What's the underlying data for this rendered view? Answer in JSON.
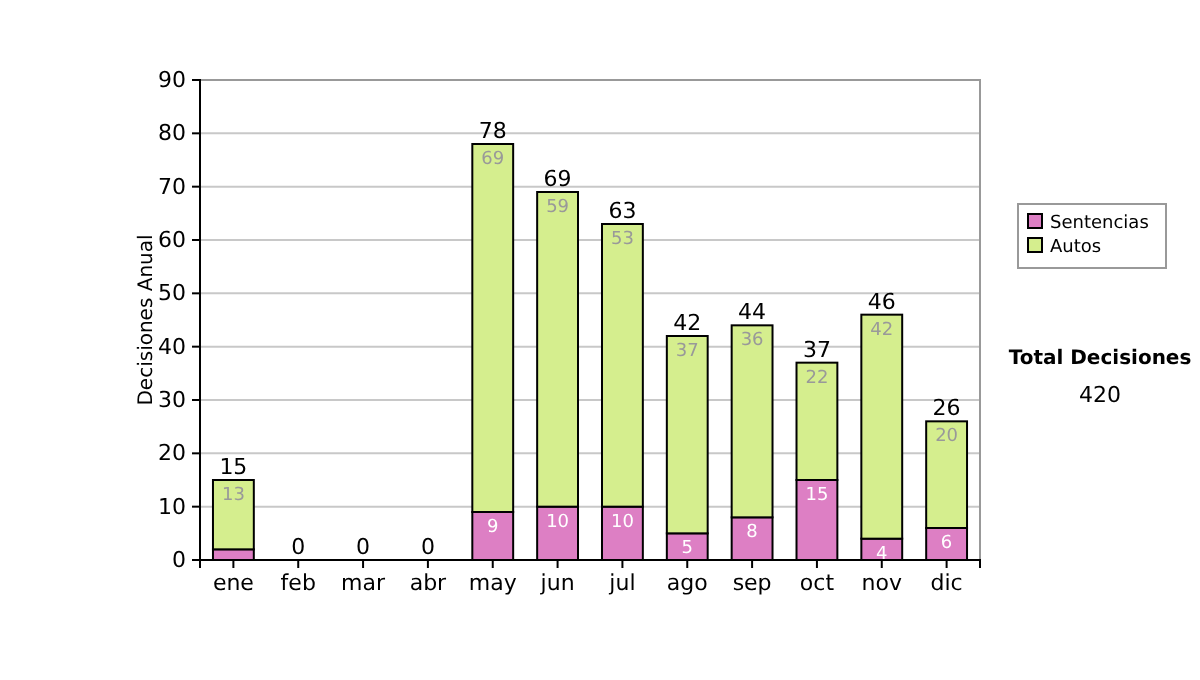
{
  "chart_data": {
    "type": "bar",
    "stacked": true,
    "ylabel": "Decisiones Anual",
    "categories": [
      "ene",
      "feb",
      "mar",
      "abr",
      "may",
      "jun",
      "jul",
      "ago",
      "sep",
      "oct",
      "nov",
      "dic"
    ],
    "series": [
      {
        "name": "Sentencias",
        "color": "#dd7fc4",
        "values": [
          2,
          0,
          0,
          0,
          9,
          10,
          10,
          5,
          8,
          15,
          4,
          6
        ],
        "value_labels": [
          null,
          null,
          null,
          null,
          "9",
          "10",
          "10",
          "5",
          "8",
          "15",
          "4",
          "6"
        ]
      },
      {
        "name": "Autos",
        "color": "#d5ee8e",
        "values": [
          13,
          0,
          0,
          0,
          69,
          59,
          53,
          37,
          36,
          22,
          42,
          20
        ],
        "value_labels": [
          "13",
          null,
          null,
          null,
          "69",
          "59",
          "53",
          "37",
          "36",
          "22",
          "42",
          "20"
        ]
      }
    ],
    "totals": [
      "15",
      "0",
      "0",
      "0",
      "78",
      "69",
      "63",
      "42",
      "44",
      "37",
      "46",
      "26"
    ],
    "ylim": [
      0,
      90
    ],
    "yticks": [
      0,
      10,
      20,
      30,
      40,
      50,
      60,
      70,
      80,
      90
    ],
    "grid": "y",
    "legend": "right",
    "annotations": [
      "Total Decisiones",
      "420"
    ]
  }
}
